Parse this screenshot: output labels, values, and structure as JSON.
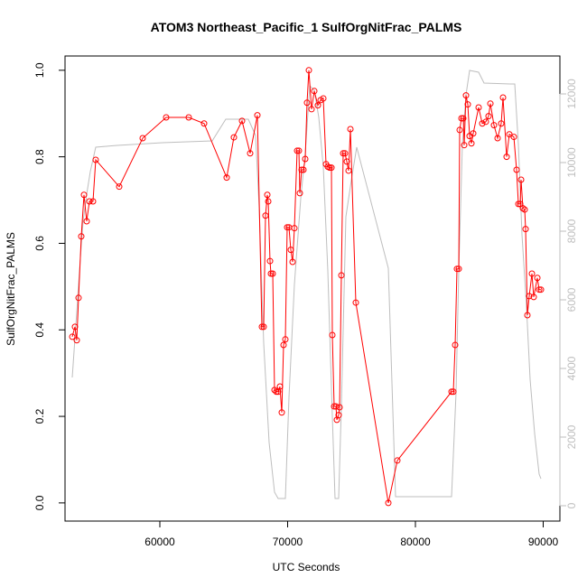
{
  "chart_data": {
    "type": "line",
    "title": "ATOM3 Northeast_Pacific_1 SulfOrgNitFrac_PALMS",
    "x_label": "UTC Seconds",
    "y_label": "SulfOrgNitFrac_PALMS",
    "xlim": [
      52580,
      91307
    ],
    "ylim": [
      -0.042,
      1.033
    ],
    "y2lim": [
      -447,
      13105
    ],
    "xticks": [
      60000,
      70000,
      80000,
      90000
    ],
    "yticks": [
      {
        "value": 0,
        "label": "0.0"
      },
      0.2,
      0.4,
      0.6,
      0.8,
      {
        "value": 1,
        "label": "1.0"
      }
    ],
    "y2ticks": [
      0,
      2000,
      4000,
      6000,
      8000,
      10000,
      12000
    ],
    "series": [
      {
        "color": "#ff0000",
        "axis": "y",
        "markers": true,
        "x": [
          53145,
          53357,
          53498,
          53640,
          53852,
          54064,
          54276,
          54488,
          54770,
          54982,
          56820,
          58657,
          60495,
          62261,
          63463,
          65230,
          65795,
          66431,
          67067,
          67633,
          67986,
          68127,
          68269,
          68410,
          68481,
          68622,
          68693,
          68834,
          68975,
          69117,
          69258,
          69399,
          69541,
          69682,
          69823,
          69965,
          70106,
          70247,
          70389,
          70530,
          70742,
          70883,
          70954,
          71095,
          71237,
          71378,
          71519,
          71661,
          71873,
          72085,
          72367,
          72580,
          72792,
          73004,
          73145,
          73286,
          73428,
          73498,
          73640,
          73781,
          73852,
          73993,
          74064,
          74205,
          74346,
          74488,
          74629,
          74770,
          74912,
          75336,
          77880,
          78587,
          82827,
          82968,
          83110,
          83251,
          83392,
          83463,
          83604,
          83746,
          83816,
          83958,
          84099,
          84240,
          84382,
          84523,
          84947,
          85230,
          85512,
          85724,
          85866,
          86148,
          86431,
          86714,
          86855,
          87138,
          87350,
          87703,
          87915,
          88057,
          88198,
          88269,
          88410,
          88551,
          88622,
          88763,
          88905,
          89117,
          89258,
          89541,
          89682,
          89823
        ],
        "values": [
          0.384,
          0.407,
          0.376,
          0.474,
          0.616,
          0.712,
          0.651,
          0.697,
          0.697,
          0.793,
          0.731,
          0.843,
          0.891,
          0.891,
          0.877,
          0.752,
          0.845,
          0.883,
          0.808,
          0.896,
          0.407,
          0.407,
          0.664,
          0.712,
          0.697,
          0.559,
          0.53,
          0.53,
          0.261,
          0.257,
          0.257,
          0.269,
          0.209,
          0.365,
          0.378,
          0.637,
          0.637,
          0.585,
          0.557,
          0.635,
          0.814,
          0.814,
          0.716,
          0.77,
          0.77,
          0.795,
          0.925,
          1.0,
          0.91,
          0.952,
          0.919,
          0.931,
          0.935,
          0.783,
          0.777,
          0.775,
          0.775,
          0.388,
          0.223,
          0.223,
          0.192,
          0.203,
          0.221,
          0.526,
          0.808,
          0.808,
          0.789,
          0.768,
          0.864,
          0.463,
          0.0,
          0.098,
          0.257,
          0.257,
          0.365,
          0.541,
          0.541,
          0.862,
          0.889,
          0.889,
          0.827,
          0.942,
          0.921,
          0.848,
          0.831,
          0.854,
          0.914,
          0.877,
          0.881,
          0.894,
          0.923,
          0.873,
          0.843,
          0.877,
          0.937,
          0.8,
          0.852,
          0.846,
          0.77,
          0.691,
          0.691,
          0.747,
          0.681,
          0.678,
          0.633,
          0.434,
          0.478,
          0.53,
          0.476,
          0.52,
          0.493,
          0.493
        ]
      },
      {
        "color": "#bebebe",
        "axis": "y2",
        "markers": false,
        "x": [
          53145,
          53428,
          53710,
          53993,
          54276,
          54558,
          54982,
          56678,
          60212,
          64099,
          65159,
          66219,
          66926,
          67491,
          67774,
          68127,
          68551,
          68975,
          69258,
          69823,
          70106,
          70530,
          71025,
          71378,
          71731,
          72085,
          72438,
          72792,
          73145,
          73428,
          73710,
          73993,
          74205,
          74558,
          74982,
          75406,
          77880,
          78445,
          82827,
          83180,
          83392,
          83675,
          83958,
          84240,
          84947,
          85371,
          87420,
          87774,
          88057,
          88340,
          88693,
          88975,
          89329,
          89682,
          89823
        ],
        "values": [
          3737,
          5263,
          6842,
          8289,
          9079,
          9737,
          10447,
          10500,
          10579,
          10632,
          11263,
          11263,
          11263,
          10789,
          8684,
          4737,
          1842,
          395,
          211,
          211,
          3158,
          6447,
          8947,
          10263,
          12237,
          12105,
          11316,
          9868,
          6842,
          3421,
          211,
          211,
          2895,
          8421,
          9474,
          10447,
          6921,
          263,
          263,
          3289,
          6842,
          10526,
          11974,
          12684,
          12632,
          12316,
          12289,
          12289,
          10526,
          7895,
          5789,
          3684,
          2105,
          921,
          789
        ]
      }
    ]
  }
}
